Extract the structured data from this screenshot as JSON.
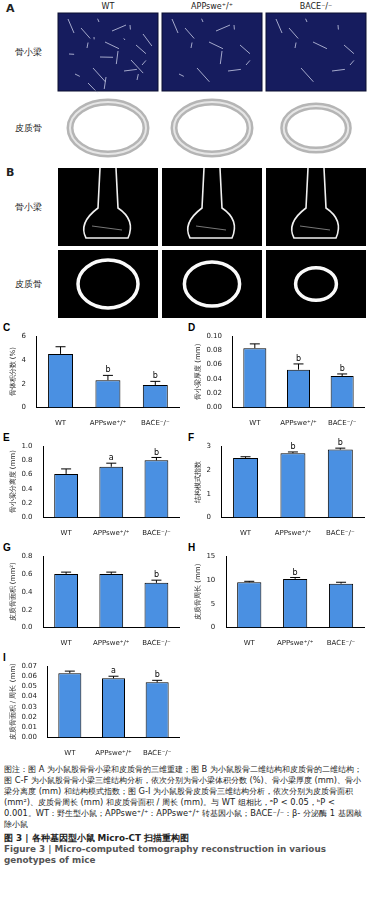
{
  "figure": {
    "image_panels": [
      {
        "panel": "A",
        "columns": [
          "WT",
          "APPswe⁺/⁺",
          "BACE⁻/⁻"
        ],
        "rows": [
          "骨小梁",
          "皮质骨"
        ]
      },
      {
        "panel": "B",
        "rows": [
          "骨小梁",
          "皮质骨"
        ]
      }
    ],
    "caption": {
      "note": "图注：图 A 为小鼠股骨骨小梁和皮质骨的三维重建；图 B 为小鼠股骨二维结构和皮质骨的二维结构；图 C-F 为小鼠股骨骨小梁三维结构分析，依次分别为骨小梁体积分数 (%)、骨小梁厚度 (mm)、骨小梁分离度 (mm) 和结构模式指数；图 G-I 为小鼠股骨皮质骨三维结构分析，依次分别为皮质骨面积 (mm²)、皮质骨周长 (mm) 和皮质骨面积 / 周长 (mm)。与 WT 组相比，ᵃP < 0.05，ᵇP < 0.001。WT：野生型小鼠；APPswe⁺/⁺：APPswe⁺/⁺ 转基因小鼠；BACE⁻/⁻：β- 分泌酶 1 基因敲除小鼠",
      "title_zh": "图 3 | 各种基因型小鼠 Micro-CT 扫描重构图",
      "title_en": "Figure 3 | Micro-computed tomography reconstruction in various genotypes of mice"
    }
  },
  "chart_data": [
    {
      "panel": "C",
      "type": "bar",
      "categories": [
        "WT",
        "APPswe⁺/⁺",
        "BACE⁻/⁻"
      ],
      "values": [
        4.5,
        2.3,
        1.9
      ],
      "errors": [
        0.6,
        0.4,
        0.3
      ],
      "annotations": [
        null,
        "b",
        "b"
      ],
      "y_label": "骨体积分数 (%)",
      "ylim": [
        0,
        6
      ],
      "yticks": [
        0,
        2,
        4,
        6
      ],
      "color": "#4a90e2",
      "grid": false
    },
    {
      "panel": "D",
      "type": "bar",
      "categories": [
        "WT",
        "APPswe⁺/⁺",
        "BACE⁻/⁻"
      ],
      "values": [
        0.083,
        0.053,
        0.044
      ],
      "errors": [
        0.006,
        0.008,
        0.003
      ],
      "annotations": [
        null,
        "b",
        "b"
      ],
      "y_label": "骨小梁厚度 (mm)",
      "ylim": [
        0,
        0.1
      ],
      "yticks": [
        {
          "value": 0,
          "label": "0.00"
        },
        {
          "value": 0.02,
          "label": "0.02"
        },
        {
          "value": 0.04,
          "label": "0.04"
        },
        {
          "value": 0.06,
          "label": "0.06"
        },
        {
          "value": 0.08,
          "label": "0.08"
        },
        {
          "value": 0.1,
          "label": "0.10"
        }
      ],
      "color": "#4a90e2",
      "grid": false
    },
    {
      "panel": "E",
      "type": "bar",
      "categories": [
        "WT",
        "APPswe⁺/⁺",
        "BACE⁻/⁻"
      ],
      "values": [
        0.61,
        0.71,
        0.8
      ],
      "errors": [
        0.07,
        0.05,
        0.04
      ],
      "annotations": [
        null,
        "a",
        "b"
      ],
      "y_label": "骨小梁分离度 (mm)",
      "ylim": [
        0,
        1
      ],
      "yticks": [
        {
          "value": 0,
          "label": "0.0"
        },
        {
          "value": 0.2,
          "label": "0.2"
        },
        {
          "value": 0.4,
          "label": "0.4"
        },
        {
          "value": 0.6,
          "label": "0.6"
        },
        {
          "value": 0.8,
          "label": "0.8"
        },
        {
          "value": 1,
          "label": "1.0"
        }
      ],
      "color": "#4a90e2",
      "grid": false
    },
    {
      "panel": "F",
      "type": "bar",
      "categories": [
        "WT",
        "APPswe⁺/⁺",
        "BACE⁻/⁻"
      ],
      "values": [
        2.5,
        2.7,
        2.85
      ],
      "errors": [
        0.05,
        0.05,
        0.06
      ],
      "annotations": [
        null,
        "b",
        "b"
      ],
      "y_label": "结构模式指数",
      "ylim": [
        0,
        3
      ],
      "yticks": [
        0,
        1,
        2,
        3
      ],
      "color": "#4a90e2",
      "grid": false
    },
    {
      "panel": "G",
      "type": "bar",
      "categories": [
        "WT",
        "APPswe⁺/⁺",
        "BACE⁻/⁻"
      ],
      "values": [
        0.6,
        0.6,
        0.5
      ],
      "errors": [
        0.02,
        0.02,
        0.03
      ],
      "annotations": [
        null,
        null,
        "b"
      ],
      "y_label": "皮质骨面积 (mm²)",
      "ylim": [
        0,
        0.8
      ],
      "yticks": [
        {
          "value": 0,
          "label": "0.0"
        },
        {
          "value": 0.2,
          "label": "0.2"
        },
        {
          "value": 0.4,
          "label": "0.4"
        },
        {
          "value": 0.6,
          "label": "0.6"
        },
        {
          "value": 0.8,
          "label": "0.8"
        }
      ],
      "color": "#4a90e2",
      "grid": false
    },
    {
      "panel": "H",
      "type": "bar",
      "categories": [
        "WT",
        "APPswe⁺/⁺",
        "BACE⁻/⁻"
      ],
      "values": [
        9.5,
        10.2,
        9.2
      ],
      "errors": [
        0.2,
        0.3,
        0.3
      ],
      "annotations": [
        null,
        "b",
        null
      ],
      "y_label": "皮质骨周长 (mm)",
      "ylim": [
        0,
        15
      ],
      "yticks": [
        0,
        5,
        10,
        15
      ],
      "color": "#4a90e2",
      "grid": false
    },
    {
      "panel": "I",
      "type": "bar",
      "categories": [
        "WT",
        "APPswe⁺/⁺",
        "BACE⁻/⁻"
      ],
      "values": [
        0.063,
        0.058,
        0.054
      ],
      "errors": [
        0.002,
        0.002,
        0.002
      ],
      "annotations": [
        null,
        "a",
        "b"
      ],
      "y_label": "皮质骨面积 / 周长 (mm)",
      "ylim": [
        0,
        0.07
      ],
      "yticks": [
        {
          "value": 0,
          "label": "0.00"
        },
        {
          "value": 0.01,
          "label": "0.01"
        },
        {
          "value": 0.02,
          "label": "0.02"
        },
        {
          "value": 0.03,
          "label": "0.03"
        },
        {
          "value": 0.04,
          "label": "0.04"
        },
        {
          "value": 0.05,
          "label": "0.05"
        },
        {
          "value": 0.06,
          "label": "0.06"
        },
        {
          "value": 0.07,
          "label": "0.07"
        }
      ],
      "color": "#4a90e2",
      "grid": false
    }
  ]
}
